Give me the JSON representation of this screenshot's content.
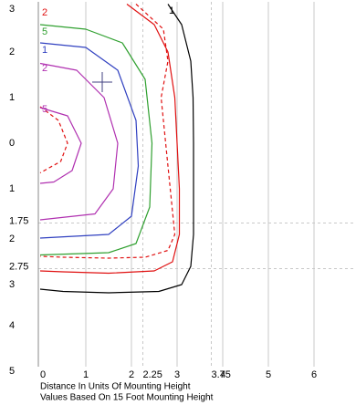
{
  "chart_data": {
    "type": "contour",
    "xlabel": "Distance In Units Of Mounting Height",
    "subtitle": "Values Based On 15 Foot Mounting Height",
    "xlim": [
      -0.04,
      6.9
    ],
    "ylim": [
      -4.9,
      3.1
    ],
    "xticks": [
      0,
      1,
      2,
      2.25,
      3,
      3.75,
      4,
      5,
      6
    ],
    "yticks": [
      3,
      2,
      1,
      0,
      {
        "value": -1,
        "label": "1"
      },
      {
        "value": -1.75,
        "label": "1.75"
      },
      {
        "value": -2,
        "label": "2"
      },
      {
        "value": -2.75,
        "label": "2.75"
      },
      {
        "value": -3,
        "label": "3"
      },
      {
        "value": -4,
        "label": "4"
      },
      {
        "value": -5,
        "label": "5"
      }
    ],
    "grid": true,
    "series": [
      {
        "name": "1",
        "color": "#000000",
        "dashed": false,
        "x": [
          2.8,
          3.1,
          3.3,
          3.35,
          3.36,
          3.36,
          3.36,
          3.3,
          3.1,
          2.6,
          1.5,
          0.5,
          0
        ],
        "values": [
          3.05,
          2.6,
          1.8,
          1,
          0,
          -1,
          -2,
          -2.7,
          -3.1,
          -3.25,
          -3.28,
          -3.25,
          -3.2
        ]
      },
      {
        "name": "2",
        "color": "#e01010",
        "dashed": false,
        "x": [
          1.9,
          2.5,
          2.8,
          2.95,
          3.0,
          3.05,
          3.05,
          2.9,
          2.5,
          1.5,
          0.5,
          0
        ],
        "values": [
          3.05,
          2.6,
          2,
          1,
          0,
          -1,
          -2,
          -2.6,
          -2.8,
          -2.85,
          -2.82,
          -2.8
        ]
      },
      {
        "color": "#e01010",
        "dashed": true,
        "x": [
          2.1,
          2.7,
          2.8,
          2.65,
          2.75,
          2.85,
          2.95,
          2.8,
          2.3,
          1.5,
          0.5,
          0,
          null,
          0,
          0.4,
          0.6,
          0.45,
          0
        ],
        "values": [
          3.05,
          2.5,
          1.8,
          1.0,
          0,
          -1,
          -2,
          -2.35,
          -2.5,
          -2.52,
          -2.5,
          -2.48,
          null,
          0.8,
          0.5,
          0,
          -0.4,
          -0.65
        ]
      },
      {
        "name": "5",
        "color": "#30a030",
        "dashed": false,
        "x": [
          0,
          1,
          1.8,
          2.3,
          2.45,
          2.4,
          2.1,
          1.5,
          0
        ],
        "values": [
          2.6,
          2.5,
          2.2,
          1.4,
          0,
          -1.4,
          -2.2,
          -2.4,
          -2.45
        ]
      },
      {
        "name": "1",
        "color": "#3040c0",
        "dashed": false,
        "x": [
          0,
          1,
          1.7,
          2.1,
          2.15,
          2.0,
          1.5,
          0
        ],
        "values": [
          2.2,
          2.1,
          1.6,
          0.5,
          -0.5,
          -1.6,
          -2.0,
          -2.08
        ]
      },
      {
        "name": "2",
        "color": "#b030b0",
        "dashed": false,
        "x": [
          0,
          0.8,
          1.4,
          1.7,
          1.6,
          1.2,
          0
        ],
        "values": [
          1.75,
          1.6,
          1.0,
          0,
          -1.0,
          -1.55,
          -1.68
        ]
      },
      {
        "name": "5",
        "color": "#b030b0",
        "dashed": false,
        "x": [
          0,
          0.6,
          0.9,
          0.7,
          0.3,
          0
        ],
        "values": [
          0.78,
          0.6,
          0,
          -0.6,
          -0.85,
          -0.88
        ]
      }
    ],
    "marker": {
      "x": 1.36,
      "y": 1.34,
      "color": "#404080"
    }
  }
}
